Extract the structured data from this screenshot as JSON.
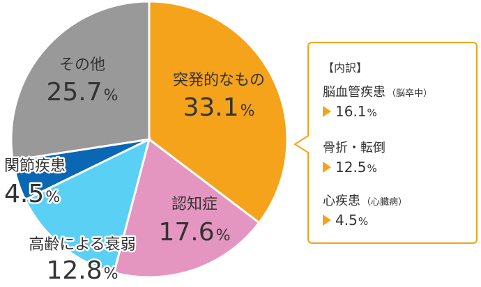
{
  "chart_data": {
    "type": "pie",
    "categories": [
      "突発的なもの",
      "認知症",
      "高齢による衰弱",
      "関節疾患",
      "その他"
    ],
    "values": [
      33.1,
      17.6,
      12.8,
      4.5,
      25.7
    ],
    "value_labels": [
      "33.1",
      "17.6",
      "12.8",
      "4.5",
      "25.7"
    ],
    "unit": "%",
    "colors": [
      "#f5a31a",
      "#e596c0",
      "#5bd0f5",
      "#0a67b3",
      "#999999"
    ],
    "start": "12 o'clock, clockwise",
    "legend": "none",
    "breakdown": {
      "of": "突発的なもの",
      "heading": "【内訳】",
      "items": [
        {
          "name": "脳血管疾患",
          "note": "（脳卒中）",
          "value": "16.1",
          "unit": "%"
        },
        {
          "name": "骨折・転倒",
          "note": "",
          "value": "12.5",
          "unit": "%"
        },
        {
          "name": "心疾患",
          "note": "（心臓病）",
          "value": "4.5",
          "unit": "%"
        }
      ],
      "border_color": "#f5a31a",
      "marker_color": "#f5a31a"
    }
  }
}
